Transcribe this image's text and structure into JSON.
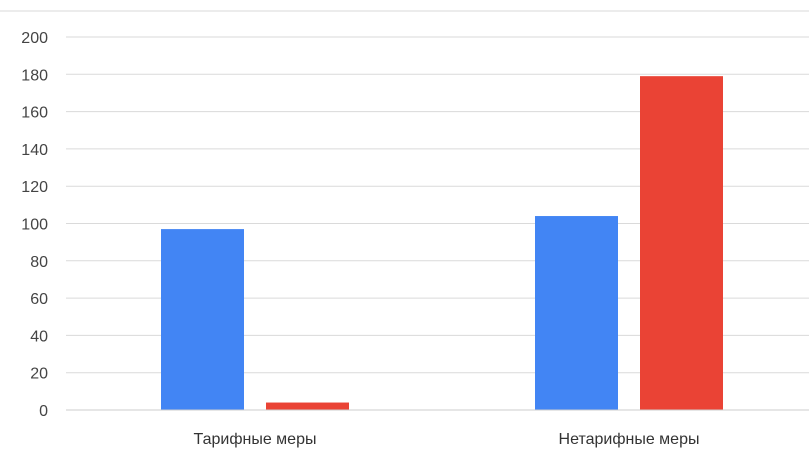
{
  "chart_data": {
    "type": "bar",
    "title": "",
    "xlabel": "",
    "ylabel": "",
    "ylim": [
      0,
      200
    ],
    "yticks": [
      0,
      20,
      40,
      60,
      80,
      100,
      120,
      140,
      160,
      180,
      200
    ],
    "grid": true,
    "legend": "none",
    "categories": [
      "Тарифные меры",
      "Нетарифные меры"
    ],
    "series": [
      {
        "color": "#4285F4",
        "values": [
          97,
          104
        ]
      },
      {
        "color": "#EA4335",
        "values": [
          4,
          179
        ]
      }
    ]
  }
}
